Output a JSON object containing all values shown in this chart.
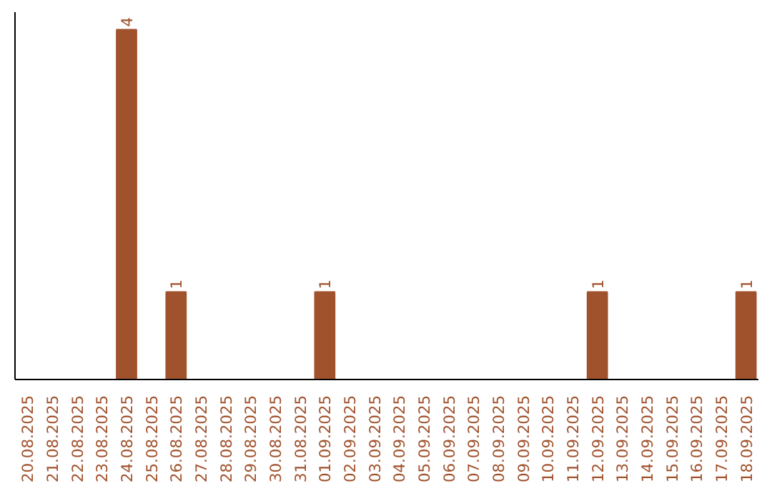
{
  "chart_data": {
    "type": "bar",
    "categories": [
      "20.08.2025",
      "21.08.2025",
      "22.08.2025",
      "23.08.2025",
      "24.08.2025",
      "25.08.2025",
      "26.08.2025",
      "27.08.2025",
      "28.08.2025",
      "29.08.2025",
      "30.08.2025",
      "31.08.2025",
      "01.09.2025",
      "02.09.2025",
      "03.09.2025",
      "04.09.2025",
      "05.09.2025",
      "06.09.2025",
      "07.09.2025",
      "08.09.2025",
      "09.09.2025",
      "10.09.2025",
      "11.09.2025",
      "12.09.2025",
      "13.09.2025",
      "14.09.2025",
      "15.09.2025",
      "16.09.2025",
      "17.09.2025",
      "18.09.2025"
    ],
    "values": [
      0,
      0,
      0,
      0,
      4,
      0,
      1,
      0,
      0,
      0,
      0,
      0,
      1,
      0,
      0,
      0,
      0,
      0,
      0,
      0,
      0,
      0,
      0,
      1,
      0,
      0,
      0,
      0,
      0,
      1
    ],
    "value_labels": [
      null,
      null,
      null,
      null,
      "4",
      null,
      "1",
      null,
      null,
      null,
      null,
      null,
      "1",
      null,
      null,
      null,
      null,
      null,
      null,
      null,
      null,
      null,
      null,
      "1",
      null,
      null,
      null,
      null,
      null,
      "1"
    ],
    "color": "#a0522d",
    "grid": false
  }
}
